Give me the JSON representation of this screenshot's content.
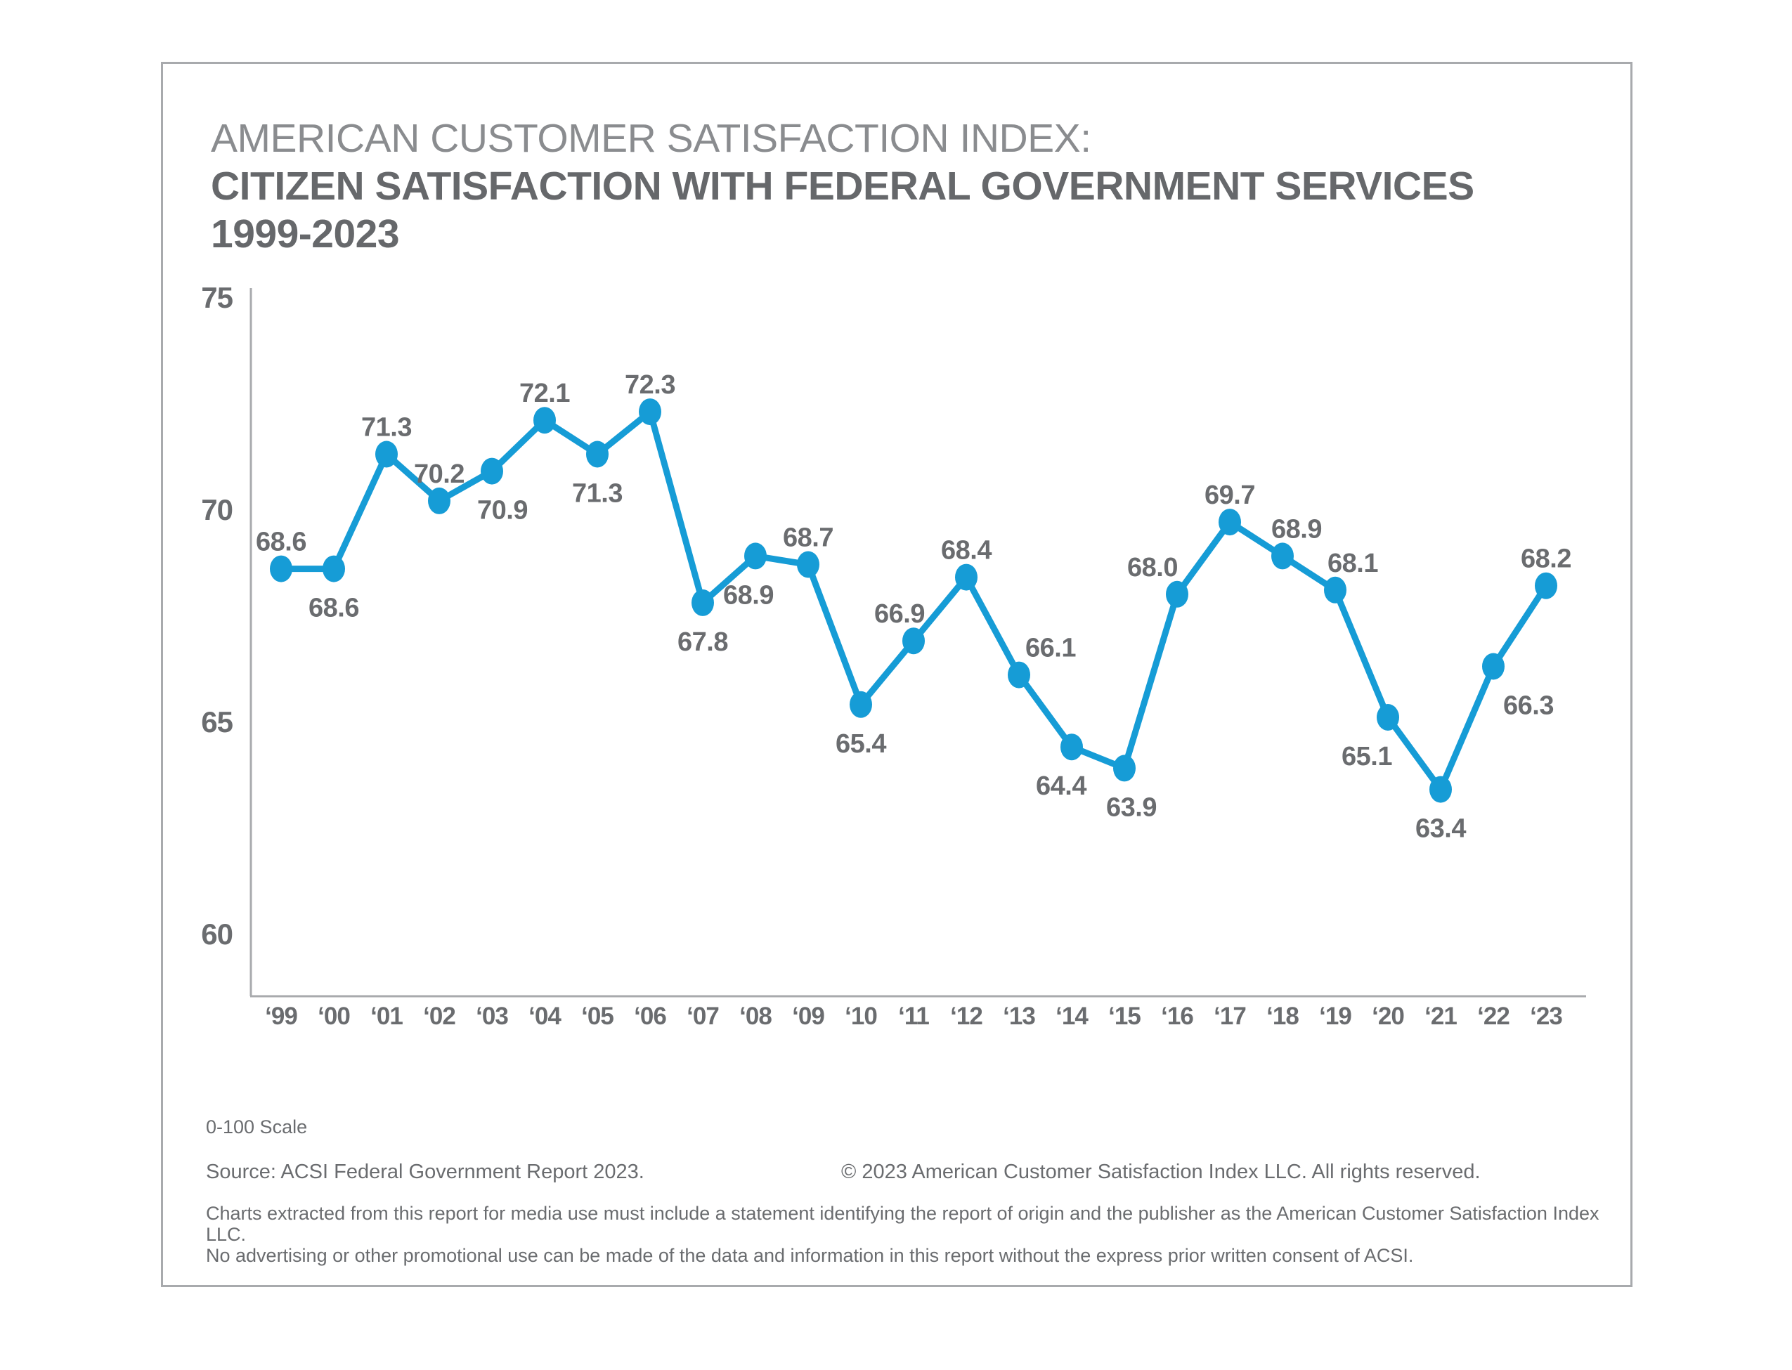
{
  "title": {
    "line1": "AMERICAN CUSTOMER SATISFACTION INDEX:",
    "line2": "CITIZEN SATISFACTION WITH FEDERAL GOVERNMENT SERVICES",
    "line3": "1999-2023"
  },
  "footer": {
    "scale_note": "0-100 Scale",
    "source": "Source: ACSI Federal Government Report 2023.",
    "copyright": "© 2023 American Customer Satisfaction Index LLC. All rights reserved.",
    "legal_line1": "Charts extracted from this report for media use must include a statement identifying the report of origin and the publisher as the American Customer Satisfaction Index LLC.",
    "legal_line2": "No advertising or other promotional use can be made of the data and information in this report without the express prior written consent of ACSI."
  },
  "colors": {
    "line": "#169cd6",
    "point": "#169cd6",
    "data_label": "#6a6c6f",
    "tick_label": "#6a6c6f",
    "axis": "#a8aaad",
    "frame_border": "#a8aaad",
    "title_light": "#8a8c8f",
    "title_dark": "#66686b"
  },
  "chart_data": {
    "type": "line",
    "title": "AMERICAN CUSTOMER SATISFACTION INDEX: CITIZEN SATISFACTION WITH FEDERAL GOVERNMENT SERVICES 1999-2023",
    "xlabel": "",
    "ylabel": "",
    "scale_note": "0-100 Scale",
    "grid": false,
    "legend": "none",
    "ylim": [
      58.5,
      75.5
    ],
    "yticks": [
      75,
      70,
      65,
      60
    ],
    "categories": [
      "‘99",
      "‘00",
      "‘01",
      "‘02",
      "‘03",
      "‘04",
      "‘05",
      "‘06",
      "‘07",
      "‘08",
      "‘09",
      "‘10",
      "‘11",
      "‘12",
      "‘13",
      "‘14",
      "‘15",
      "‘16",
      "‘17",
      "‘18",
      "‘19",
      "‘20",
      "‘21",
      "‘22",
      "‘23"
    ],
    "years": [
      1999,
      2000,
      2001,
      2002,
      2003,
      2004,
      2005,
      2006,
      2007,
      2008,
      2009,
      2010,
      2011,
      2012,
      2013,
      2014,
      2015,
      2016,
      2017,
      2018,
      2019,
      2020,
      2021,
      2022,
      2023
    ],
    "values": [
      68.6,
      68.6,
      71.3,
      70.2,
      70.9,
      72.1,
      71.3,
      72.3,
      67.8,
      68.9,
      68.7,
      65.4,
      66.9,
      68.4,
      66.1,
      64.4,
      63.9,
      68.0,
      69.7,
      68.9,
      68.1,
      65.1,
      63.4,
      66.3,
      68.2
    ],
    "value_labels": [
      "68.6",
      "68.6",
      "71.3",
      "70.2",
      "70.9",
      "72.1",
      "71.3",
      "72.3",
      "67.8",
      "68.9",
      "68.7",
      "65.4",
      "66.9",
      "68.4",
      "66.1",
      "64.4",
      "63.9",
      "68.0",
      "69.7",
      "68.9",
      "68.1",
      "65.1",
      "63.4",
      "66.3",
      "68.2"
    ],
    "label_positions": [
      "above",
      "below",
      "above",
      "above",
      "below",
      "above",
      "below",
      "above",
      "below",
      "below",
      "above",
      "below",
      "above",
      "above",
      "above",
      "below",
      "below",
      "above",
      "above",
      "above",
      "above",
      "below",
      "below",
      "below",
      "above"
    ],
    "label_dx": [
      0,
      0,
      0,
      0,
      15,
      0,
      0,
      0,
      0,
      -10,
      0,
      0,
      -20,
      0,
      45,
      -15,
      10,
      -35,
      0,
      20,
      25,
      -30,
      0,
      50,
      0
    ]
  }
}
